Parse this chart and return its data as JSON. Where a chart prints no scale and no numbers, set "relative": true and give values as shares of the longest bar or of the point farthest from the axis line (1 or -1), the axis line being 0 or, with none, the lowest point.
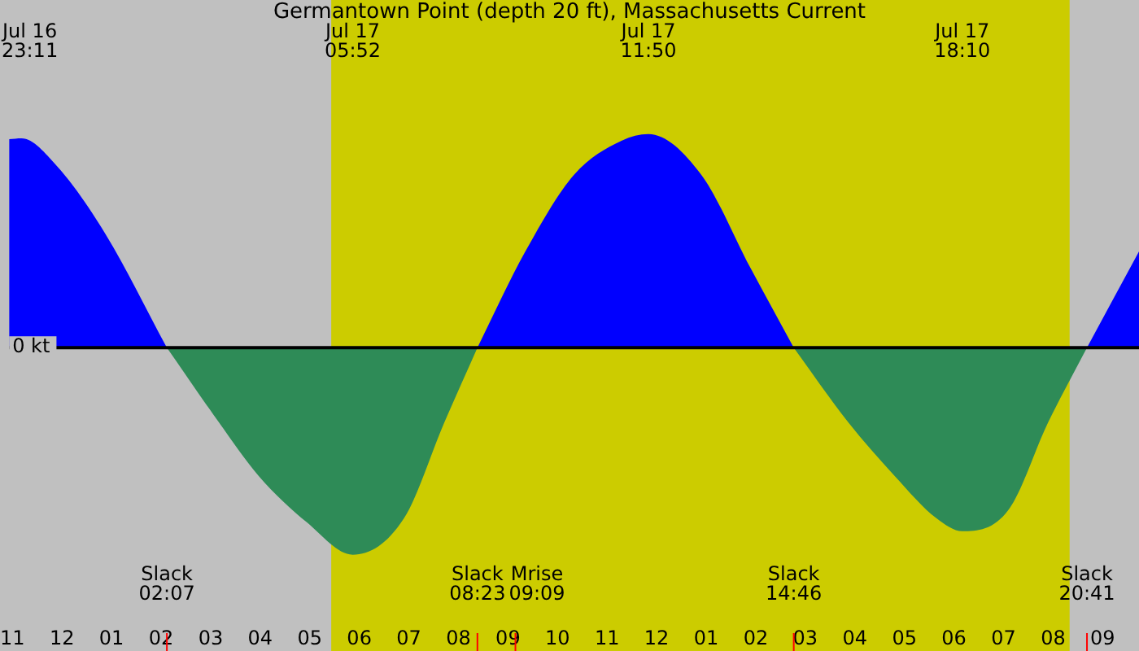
{
  "chart_data": {
    "type": "area",
    "title": "Germantown Point (depth 20 ft), Massachusetts Current",
    "relative": true,
    "xlim": [
      "--07-16T22:56",
      "--07-17T21:44"
    ],
    "xticks": [
      {
        "value": "--07-16T23:00",
        "label": "11"
      },
      {
        "value": "--07-17T00:00",
        "label": "12"
      },
      {
        "value": "--07-17T01:00",
        "label": "01"
      },
      {
        "value": "--07-17T02:00",
        "label": "02"
      },
      {
        "value": "--07-17T03:00",
        "label": "03"
      },
      {
        "value": "--07-17T04:00",
        "label": "04"
      },
      {
        "value": "--07-17T05:00",
        "label": "05"
      },
      {
        "value": "--07-17T06:00",
        "label": "06"
      },
      {
        "value": "--07-17T07:00",
        "label": "07"
      },
      {
        "value": "--07-17T08:00",
        "label": "08"
      },
      {
        "value": "--07-17T09:00",
        "label": "09"
      },
      {
        "value": "--07-17T10:00",
        "label": "10"
      },
      {
        "value": "--07-17T11:00",
        "label": "11"
      },
      {
        "value": "--07-17T12:00",
        "label": "12"
      },
      {
        "value": "--07-17T13:00",
        "label": "01"
      },
      {
        "value": "--07-17T14:00",
        "label": "02"
      },
      {
        "value": "--07-17T15:00",
        "label": "03"
      },
      {
        "value": "--07-17T16:00",
        "label": "04"
      },
      {
        "value": "--07-17T17:00",
        "label": "05"
      },
      {
        "value": "--07-17T18:00",
        "label": "06"
      },
      {
        "value": "--07-17T19:00",
        "label": "07"
      },
      {
        "value": "--07-17T20:00",
        "label": "08"
      },
      {
        "value": "--07-17T21:00",
        "label": "09"
      }
    ],
    "series": [
      {
        "color": "#0000ff",
        "x": [
          "--07-16T22:56",
          "--07-16T23:11",
          "--07-16T23:54",
          "--07-17T00:53",
          "--07-17T02:07"
        ],
        "values": [
          0.976,
          0.98,
          0.85,
          0.53,
          0
        ]
      },
      {
        "color": "#2e8b57",
        "x": [
          "--07-17T02:07",
          "--07-17T03:10",
          "--07-17T03:58",
          "--07-17T04:57",
          "--07-17T05:52",
          "--07-17T06:54",
          "--07-17T07:43",
          "--07-17T08:23"
        ],
        "values": [
          0,
          -0.35,
          -0.6,
          -0.82,
          -0.97,
          -0.8,
          -0.35,
          0
        ]
      },
      {
        "color": "#0000ff",
        "x": [
          "--07-17T08:23",
          "--07-17T09:21",
          "--07-17T10:20",
          "--07-17T11:18",
          "--07-17T11:50",
          "--07-17T12:54",
          "--07-17T13:54",
          "--07-17T14:46"
        ],
        "values": [
          0,
          0.45,
          0.81,
          0.97,
          1,
          0.81,
          0.37,
          0
        ]
      },
      {
        "color": "#2e8b57",
        "x": [
          "--07-17T14:46",
          "--07-17T15:52",
          "--07-17T16:48",
          "--07-17T17:39",
          "--07-17T18:10",
          "--07-17T19:06",
          "--07-17T19:54",
          "--07-17T20:41"
        ],
        "values": [
          0,
          -0.35,
          -0.6,
          -0.8,
          -0.86,
          -0.76,
          -0.35,
          0
        ]
      },
      {
        "color": "#0000ff",
        "x": [
          "--07-17T20:41",
          "--07-17T21:44"
        ],
        "values": [
          0,
          0.45
        ]
      }
    ],
    "bands": [
      {
        "axis": "x",
        "from": "--07-17T05:26",
        "to": "--07-17T20:20",
        "color": "#cccc00"
      }
    ],
    "ref_lines": [
      {
        "axis": "y",
        "value": 0,
        "label": "0 kt",
        "color": "#000000"
      },
      {
        "axis": "x",
        "value": "--07-17T02:07",
        "label": "Slack\n02:07",
        "color": "#ff0000"
      },
      {
        "axis": "x",
        "value": "--07-17T08:23",
        "label": "Slack\n08:23",
        "color": "#ff0000"
      },
      {
        "axis": "x",
        "value": "--07-17T09:09",
        "label": "Mrise\n09:09",
        "color": "#ff0000"
      },
      {
        "axis": "x",
        "value": "--07-17T14:46",
        "label": "Slack\n14:46",
        "color": "#ff0000"
      },
      {
        "axis": "x",
        "value": "--07-17T20:41",
        "label": "Slack\n20:41",
        "color": "#ff0000"
      }
    ],
    "annotations": [
      "Jul 16\n23:11",
      "Jul 17\n05:52",
      "Jul 17\n11:50",
      "Jul 17\n18:10"
    ]
  }
}
